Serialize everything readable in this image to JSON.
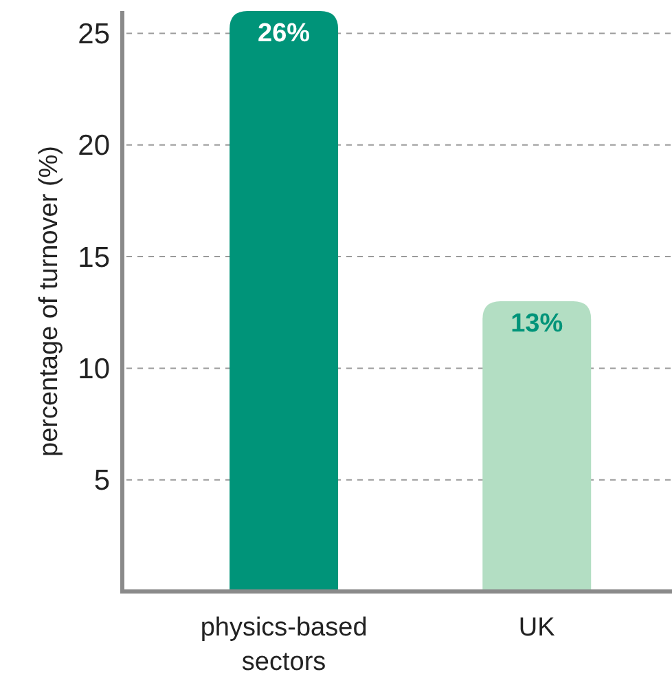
{
  "chart_data": {
    "type": "bar",
    "ylabel": "percentage of turnover (%)",
    "categories": [
      "physics-based sectors",
      "UK"
    ],
    "values": [
      26,
      13
    ],
    "colors": [
      "#009479",
      "#b3dec3"
    ],
    "value_labels": [
      "26%",
      "13%"
    ],
    "ylim": [
      0,
      26
    ],
    "yticks": [
      5,
      10,
      15,
      20,
      25
    ],
    "grid": "y"
  }
}
